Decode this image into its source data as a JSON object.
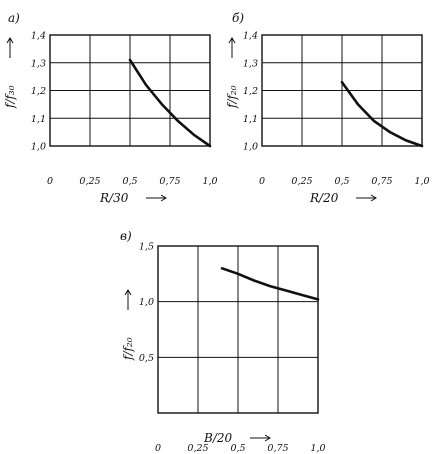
{
  "chart_data": [
    {
      "type": "line",
      "panel": "а)",
      "xlabel": "R/30",
      "ylabel": "f/f₃₀",
      "xlim": [
        0,
        1.0
      ],
      "ylim": [
        1.0,
        1.4
      ],
      "xticks": [
        0,
        0.25,
        0.5,
        0.75,
        1.0
      ],
      "xtick_labels": [
        "0",
        "0,25",
        "0,5",
        "0,75",
        "1,0"
      ],
      "yticks": [
        1.0,
        1.1,
        1.2,
        1.3,
        1.4
      ],
      "ytick_labels": [
        "1,0",
        "1,1",
        "1,2",
        "1,3",
        "1,4"
      ],
      "grid": true,
      "series": [
        {
          "x": [
            0.5,
            0.6,
            0.7,
            0.8,
            0.9,
            1.0
          ],
          "y": [
            1.31,
            1.22,
            1.15,
            1.09,
            1.04,
            1.0
          ]
        }
      ]
    },
    {
      "type": "line",
      "panel": "б)",
      "xlabel": "R/20",
      "ylabel": "f/f₂₀",
      "xlim": [
        0,
        1.0
      ],
      "ylim": [
        1.0,
        1.4
      ],
      "xticks": [
        0,
        0.25,
        0.5,
        0.75,
        1.0
      ],
      "xtick_labels": [
        "0",
        "0,25",
        "0,5",
        "0,75",
        "1,0"
      ],
      "yticks": [
        1.0,
        1.1,
        1.2,
        1.3,
        1.4
      ],
      "ytick_labels": [
        "1,0",
        "1,1",
        "1,2",
        "1,3",
        "1,4"
      ],
      "grid": true,
      "series": [
        {
          "x": [
            0.5,
            0.6,
            0.7,
            0.8,
            0.9,
            1.0
          ],
          "y": [
            1.23,
            1.15,
            1.09,
            1.05,
            1.02,
            1.0
          ]
        }
      ]
    },
    {
      "type": "line",
      "panel": "в)",
      "xlabel": "B/20",
      "ylabel": "f/f₂₀",
      "xlim": [
        0,
        1.0
      ],
      "ylim": [
        0,
        1.5
      ],
      "xticks": [
        0,
        0.25,
        0.5,
        0.75,
        1.0
      ],
      "xtick_labels": [
        "0",
        "0,25",
        "0,5",
        "0,75",
        "1,0"
      ],
      "yticks": [
        0.5,
        1.0,
        1.5
      ],
      "ytick_labels": [
        "0,5",
        "1,0",
        "1,5"
      ],
      "grid": true,
      "series": [
        {
          "x": [
            0.4,
            0.5,
            0.6,
            0.7,
            0.8,
            0.9,
            1.0
          ],
          "y": [
            1.3,
            1.25,
            1.19,
            1.14,
            1.1,
            1.06,
            1.02
          ]
        }
      ]
    }
  ]
}
